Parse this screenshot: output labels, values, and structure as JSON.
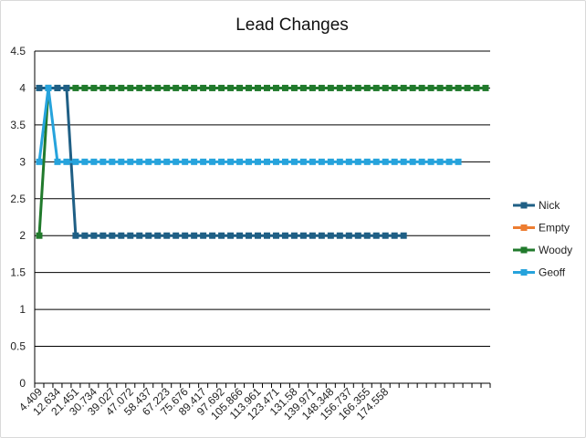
{
  "chart_data": {
    "type": "line",
    "title": "Lead Changes",
    "xlabel": "",
    "ylabel": "",
    "ylim": [
      0,
      4.5
    ],
    "yticks": [
      "0",
      "0.5",
      "1",
      "1.5",
      "2",
      "2.5",
      "3",
      "3.5",
      "4",
      "4.5"
    ],
    "grid": true,
    "legend_position": "right",
    "x_category_count": 50,
    "x_tick_labels": [
      "4.409",
      "12.634",
      "21.451",
      "30.734",
      "39.027",
      "47.072",
      "58.437",
      "67.223",
      "75.676",
      "89.417",
      "97.692",
      "105.866",
      "113.961",
      "123.471",
      "131.58",
      "139.971",
      "148.348",
      "156.737",
      "166.355",
      "174.558"
    ],
    "x_tick_label_every": 2,
    "series": [
      {
        "name": "Nick",
        "color": "#1f5f85",
        "values": [
          4,
          4,
          4,
          4,
          2,
          2,
          2,
          2,
          2,
          2,
          2,
          2,
          2,
          2,
          2,
          2,
          2,
          2,
          2,
          2,
          2,
          2,
          2,
          2,
          2,
          2,
          2,
          2,
          2,
          2,
          2,
          2,
          2,
          2,
          2,
          2,
          2,
          2,
          2,
          2,
          2
        ]
      },
      {
        "name": "Empty",
        "color": "#ed7d31",
        "values": []
      },
      {
        "name": "Woody",
        "color": "#217a2c",
        "values": [
          2,
          4,
          4,
          4,
          4,
          4,
          4,
          4,
          4,
          4,
          4,
          4,
          4,
          4,
          4,
          4,
          4,
          4,
          4,
          4,
          4,
          4,
          4,
          4,
          4,
          4,
          4,
          4,
          4,
          4,
          4,
          4,
          4,
          4,
          4,
          4,
          4,
          4,
          4,
          4,
          4,
          4,
          4,
          4,
          4,
          4,
          4,
          4,
          4,
          4
        ]
      },
      {
        "name": "Geoff",
        "color": "#26a3dc",
        "values": [
          3,
          4,
          3,
          3,
          3,
          3,
          3,
          3,
          3,
          3,
          3,
          3,
          3,
          3,
          3,
          3,
          3,
          3,
          3,
          3,
          3,
          3,
          3,
          3,
          3,
          3,
          3,
          3,
          3,
          3,
          3,
          3,
          3,
          3,
          3,
          3,
          3,
          3,
          3,
          3,
          3,
          3,
          3,
          3,
          3,
          3,
          3
        ]
      }
    ]
  }
}
